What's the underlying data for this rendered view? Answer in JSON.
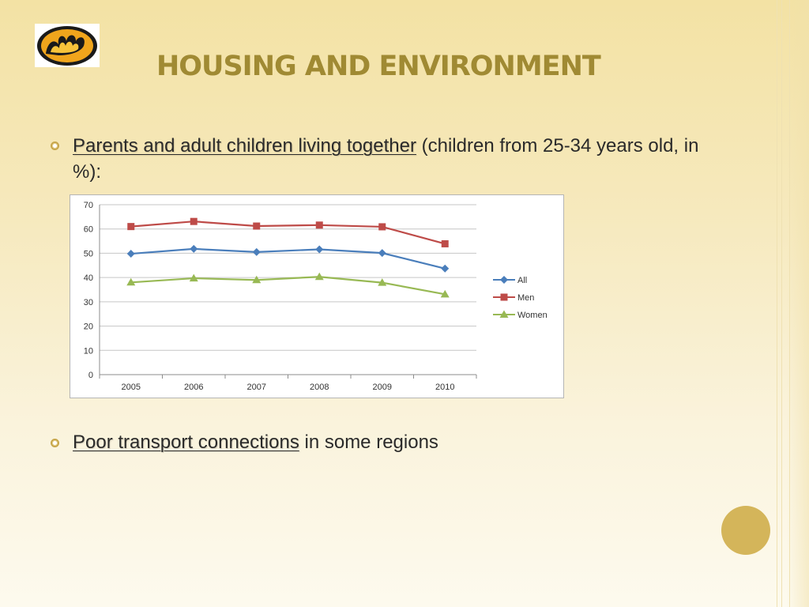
{
  "slide": {
    "title": "HOUSING AND ENVIRONMENT",
    "bullets": [
      {
        "highlight": "Parents and adult children living together",
        "rest": " (children from 25-34 years old, in %):"
      },
      {
        "highlight": "Poor transport connections",
        "rest": " in some regions"
      }
    ]
  },
  "colors": {
    "title": "#a08a33",
    "all": "#4a7ebb",
    "men": "#be4b48",
    "women": "#98b954",
    "accent_circle": "#d4b55a"
  },
  "chart_data": {
    "type": "line",
    "title": "",
    "xlabel": "",
    "ylabel": "",
    "categories": [
      "2005",
      "2006",
      "2007",
      "2008",
      "2009",
      "2010"
    ],
    "ylim": [
      0,
      70
    ],
    "yticks": [
      0,
      10,
      20,
      30,
      40,
      50,
      60,
      70
    ],
    "grid": true,
    "legend_position": "right",
    "series": [
      {
        "name": "All",
        "marker": "diamond",
        "color": "#4a7ebb",
        "values": [
          49.8,
          51.8,
          50.5,
          51.6,
          50.1,
          43.7
        ]
      },
      {
        "name": "Men",
        "marker": "square",
        "color": "#be4b48",
        "values": [
          61.0,
          63.1,
          61.2,
          61.6,
          60.9,
          53.9
        ]
      },
      {
        "name": "Women",
        "marker": "triangle",
        "color": "#98b954",
        "values": [
          38.0,
          39.7,
          39.0,
          40.3,
          37.9,
          33.1
        ]
      }
    ]
  }
}
